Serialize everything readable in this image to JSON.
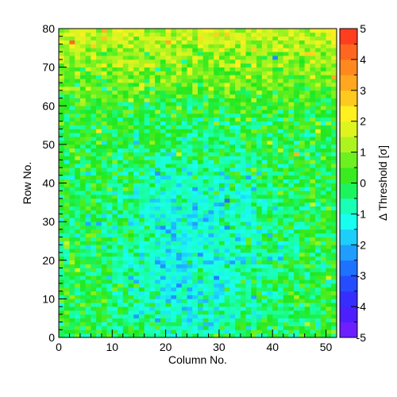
{
  "chart_data": {
    "type": "heatmap",
    "title": "",
    "xlabel": "Column No.",
    "ylabel": "Row No.",
    "colorbar_label": "Δ Threshold [σ]",
    "xlim": [
      0,
      52
    ],
    "ylim": [
      0,
      80
    ],
    "zlim": [
      -5,
      5
    ],
    "n_columns": 52,
    "n_rows": 80,
    "x_ticks": [
      {
        "value": 0,
        "label": "0"
      },
      {
        "value": 10,
        "label": "10"
      },
      {
        "value": 20,
        "label": "20"
      },
      {
        "value": 30,
        "label": "30"
      },
      {
        "value": 40,
        "label": "40"
      },
      {
        "value": 50,
        "label": "50"
      }
    ],
    "y_ticks": [
      {
        "value": 0,
        "label": "0"
      },
      {
        "value": 10,
        "label": "10"
      },
      {
        "value": 20,
        "label": "20"
      },
      {
        "value": 30,
        "label": "30"
      },
      {
        "value": 40,
        "label": "40"
      },
      {
        "value": 50,
        "label": "50"
      },
      {
        "value": 60,
        "label": "60"
      },
      {
        "value": 70,
        "label": "70"
      },
      {
        "value": 80,
        "label": "80"
      }
    ],
    "z_ticks": [
      {
        "value": 5,
        "label": "5"
      },
      {
        "value": 4,
        "label": "4"
      },
      {
        "value": 3,
        "label": "3"
      },
      {
        "value": 2,
        "label": "2"
      },
      {
        "value": 1,
        "label": "1"
      },
      {
        "value": 0,
        "label": "0"
      },
      {
        "value": -1,
        "label": "-1"
      },
      {
        "value": -2,
        "label": "-2"
      },
      {
        "value": -3,
        "label": "-3"
      },
      {
        "value": -4,
        "label": "-4"
      },
      {
        "value": -5,
        "label": "-5"
      }
    ],
    "colormap_stops": [
      {
        "value": -5,
        "color": "#7f1fff"
      },
      {
        "value": -4,
        "color": "#3c1fff"
      },
      {
        "value": -3,
        "color": "#1f5bff"
      },
      {
        "value": -2,
        "color": "#1fb4ff"
      },
      {
        "value": -1.25,
        "color": "#19ffef"
      },
      {
        "value": -0.5,
        "color": "#19ff9a"
      },
      {
        "value": 0,
        "color": "#1fe81f"
      },
      {
        "value": 0.75,
        "color": "#6cf01f"
      },
      {
        "value": 1.5,
        "color": "#cdf51f"
      },
      {
        "value": 2.25,
        "color": "#fff11f"
      },
      {
        "value": 3,
        "color": "#ffb61f"
      },
      {
        "value": 4,
        "color": "#ff7a1f"
      },
      {
        "value": 5,
        "color": "#ff2a1f"
      }
    ],
    "value_field": {
      "description_of_pattern": "per-pixel values roughly centered near 0, lower (about -1.5) around columns 15-35 rows 5-45, higher (about +1.5) toward the top rows 65-80",
      "base": 0.0,
      "center_dip": {
        "col": 25,
        "row": 22,
        "amplitude": -1.4,
        "col_width": 14,
        "row_width": 26
      },
      "top_rise": {
        "row_start": 55,
        "row_end": 80,
        "amplitude": 1.6
      },
      "noise": 0.55,
      "outliers": [
        {
          "col": 2,
          "row": 76,
          "value": 4.2
        },
        {
          "col": 8,
          "row": 79,
          "value": 3.0
        },
        {
          "col": 44,
          "row": 47,
          "value": 3.0
        },
        {
          "col": 51,
          "row": 67,
          "value": 3.2
        },
        {
          "col": 47,
          "row": 73,
          "value": 2.6
        },
        {
          "col": 35,
          "row": 41,
          "value": -2.2
        },
        {
          "col": 40,
          "row": 72,
          "value": -2.5
        },
        {
          "col": 20,
          "row": 27,
          "value": -2.3
        },
        {
          "col": 5,
          "row": 29,
          "value": -2.1
        },
        {
          "col": 18,
          "row": 4,
          "value": -2.2
        },
        {
          "col": 7,
          "row": 53,
          "value": 2.4
        }
      ]
    }
  }
}
